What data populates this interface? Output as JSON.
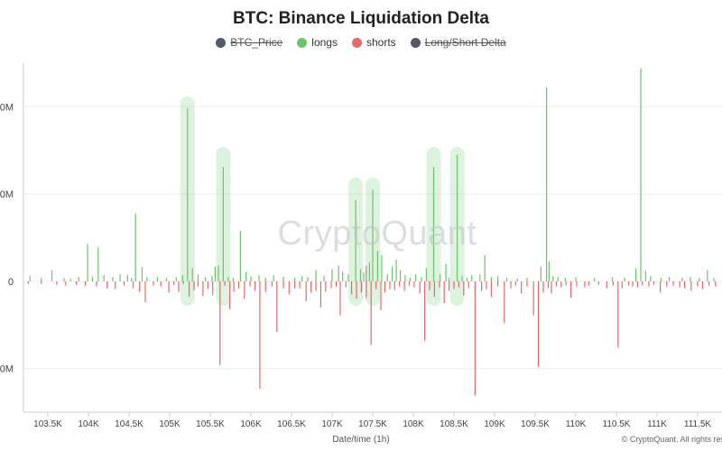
{
  "chart_data": {
    "type": "bar",
    "title": "BTC: Binance Liquidation Delta",
    "xlabel": "Date/time (1h)",
    "x_tick_labels": [
      "103.5K",
      "104K",
      "104.5K",
      "105K",
      "105.5K",
      "106K",
      "106.5K",
      "107K",
      "107.5K",
      "108K",
      "108.5K",
      "109K",
      "109.5K",
      "110K",
      "110.5K",
      "111K",
      "111.5K"
    ],
    "y_tick_labels": [
      "0M",
      "0M",
      "0",
      "0M"
    ],
    "y_tick_values": [
      20,
      10,
      0,
      -10
    ],
    "ylim": [
      -15,
      25
    ],
    "legend": [
      {
        "name": "BTC_Price",
        "color": "#555a66",
        "hidden": true
      },
      {
        "name": "longs",
        "color": "#6cc36c",
        "hidden": false
      },
      {
        "name": "shorts",
        "color": "#e06b6b",
        "hidden": false
      },
      {
        "name": "Long/Short Delta",
        "color": "#555a66",
        "hidden": true
      }
    ],
    "x_range": [
      103200,
      111800
    ],
    "grid": "horizontal",
    "series": [
      {
        "name": "longs",
        "color": "#6cc36c",
        "points": [
          [
            103280,
            0.6
          ],
          [
            103420,
            0.4
          ],
          [
            103550,
            1.3
          ],
          [
            103700,
            0.4
          ],
          [
            103780,
            0.3
          ],
          [
            103880,
            0.5
          ],
          [
            103990,
            4.3
          ],
          [
            104050,
            0.5
          ],
          [
            104120,
            3.9
          ],
          [
            104190,
            0.7
          ],
          [
            104300,
            0.5
          ],
          [
            104390,
            0.8
          ],
          [
            104480,
            0.7
          ],
          [
            104530,
            0.4
          ],
          [
            104580,
            7.8
          ],
          [
            104660,
            1.6
          ],
          [
            104720,
            0.5
          ],
          [
            104850,
            0.5
          ],
          [
            104960,
            0.4
          ],
          [
            105080,
            0.5
          ],
          [
            105160,
            0.7
          ],
          [
            105220,
            19.8
          ],
          [
            105280,
            1.5
          ],
          [
            105350,
            0.8
          ],
          [
            105440,
            0.5
          ],
          [
            105520,
            0.6
          ],
          [
            105560,
            1.7
          ],
          [
            105600,
            1.8
          ],
          [
            105660,
            13.1
          ],
          [
            105720,
            0.5
          ],
          [
            105780,
            0.4
          ],
          [
            105870,
            5.8
          ],
          [
            105940,
            1.1
          ],
          [
            106000,
            0.6
          ],
          [
            106100,
            0.7
          ],
          [
            106180,
            0.4
          ],
          [
            106280,
            0.7
          ],
          [
            106400,
            0.5
          ],
          [
            106540,
            0.4
          ],
          [
            106630,
            0.6
          ],
          [
            106700,
            0.5
          ],
          [
            106800,
            1.3
          ],
          [
            106900,
            0.6
          ],
          [
            107000,
            1.4
          ],
          [
            107080,
            1.8
          ],
          [
            107130,
            1.1
          ],
          [
            107200,
            0.8
          ],
          [
            107290,
            9.3
          ],
          [
            107350,
            1.4
          ],
          [
            107390,
            1.0
          ],
          [
            107420,
            1.8
          ],
          [
            107460,
            2.2
          ],
          [
            107500,
            10.5
          ],
          [
            107560,
            3.5
          ],
          [
            107610,
            3.0
          ],
          [
            107680,
            0.8
          ],
          [
            107740,
            1.7
          ],
          [
            107790,
            2.5
          ],
          [
            107840,
            1.3
          ],
          [
            107900,
            0.7
          ],
          [
            107960,
            0.4
          ],
          [
            108030,
            0.8
          ],
          [
            108100,
            0.5
          ],
          [
            108160,
            1.5
          ],
          [
            108250,
            13.1
          ],
          [
            108330,
            0.8
          ],
          [
            108400,
            2.0
          ],
          [
            108440,
            0.4
          ],
          [
            108540,
            14.5
          ],
          [
            108600,
            0.6
          ],
          [
            108660,
            0.4
          ],
          [
            108720,
            0.7
          ],
          [
            108820,
            0.8
          ],
          [
            108880,
            3.0
          ],
          [
            108960,
            0.5
          ],
          [
            109040,
            0.6
          ],
          [
            109150,
            0.4
          ],
          [
            109280,
            0.3
          ],
          [
            109400,
            0.4
          ],
          [
            109570,
            1.7
          ],
          [
            109640,
            22.2
          ],
          [
            109670,
            2.3
          ],
          [
            109720,
            0.6
          ],
          [
            109780,
            0.5
          ],
          [
            109870,
            0.4
          ],
          [
            110000,
            0.5
          ],
          [
            110230,
            0.4
          ],
          [
            110450,
            0.5
          ],
          [
            110600,
            0.4
          ],
          [
            110740,
            1.5
          ],
          [
            110800,
            24.4
          ],
          [
            110860,
            1.2
          ],
          [
            110920,
            0.6
          ],
          [
            111050,
            0.4
          ],
          [
            111150,
            0.5
          ],
          [
            111310,
            0.4
          ],
          [
            111410,
            0.5
          ],
          [
            111520,
            0.4
          ],
          [
            111620,
            1.3
          ],
          [
            111700,
            0.4
          ]
        ]
      },
      {
        "name": "shorts",
        "color": "#e06b6b",
        "points": [
          [
            103260,
            -0.3
          ],
          [
            103420,
            -0.3
          ],
          [
            103610,
            -0.4
          ],
          [
            103720,
            -0.5
          ],
          [
            103850,
            -0.4
          ],
          [
            103960,
            -0.5
          ],
          [
            104100,
            -0.6
          ],
          [
            104230,
            -0.8
          ],
          [
            104330,
            -0.9
          ],
          [
            104440,
            -0.5
          ],
          [
            104550,
            -0.8
          ],
          [
            104630,
            -1.2
          ],
          [
            104700,
            -2.4
          ],
          [
            104800,
            -0.5
          ],
          [
            104890,
            -0.6
          ],
          [
            104990,
            -1.3
          ],
          [
            105050,
            -0.4
          ],
          [
            105110,
            -1.2
          ],
          [
            105170,
            -0.3
          ],
          [
            105240,
            -1.8
          ],
          [
            105300,
            -1.0
          ],
          [
            105350,
            -0.6
          ],
          [
            105410,
            -1.7
          ],
          [
            105470,
            -0.9
          ],
          [
            105530,
            -1.6
          ],
          [
            105620,
            -9.6
          ],
          [
            105680,
            -0.5
          ],
          [
            105740,
            -3.2
          ],
          [
            105790,
            -1.2
          ],
          [
            105850,
            -0.8
          ],
          [
            105920,
            -2.0
          ],
          [
            105990,
            -0.6
          ],
          [
            106050,
            -1.1
          ],
          [
            106110,
            -12.3
          ],
          [
            106180,
            -1.2
          ],
          [
            106260,
            -0.6
          ],
          [
            106320,
            -5.8
          ],
          [
            106400,
            -0.8
          ],
          [
            106470,
            -1.5
          ],
          [
            106540,
            -0.8
          ],
          [
            106600,
            -0.8
          ],
          [
            106680,
            -2.3
          ],
          [
            106740,
            -1.3
          ],
          [
            106800,
            -1.1
          ],
          [
            106860,
            -3.0
          ],
          [
            106920,
            -1.2
          ],
          [
            106990,
            -0.8
          ],
          [
            107050,
            -0.6
          ],
          [
            107100,
            -3.9
          ],
          [
            107170,
            -0.7
          ],
          [
            107240,
            -1.5
          ],
          [
            107300,
            -2.0
          ],
          [
            107360,
            -1.3
          ],
          [
            107420,
            -1.9
          ],
          [
            107480,
            -7.3
          ],
          [
            107540,
            -0.9
          ],
          [
            107600,
            -3.3
          ],
          [
            107650,
            -1.3
          ],
          [
            107710,
            -0.9
          ],
          [
            107770,
            -1.0
          ],
          [
            107830,
            -0.6
          ],
          [
            107890,
            -1.1
          ],
          [
            107950,
            -0.5
          ],
          [
            108010,
            -0.7
          ],
          [
            108080,
            -1.4
          ],
          [
            108140,
            -6.8
          ],
          [
            108200,
            -1.0
          ],
          [
            108260,
            -1.8
          ],
          [
            108320,
            -0.7
          ],
          [
            108380,
            -2.5
          ],
          [
            108440,
            -1.1
          ],
          [
            108500,
            -0.9
          ],
          [
            108560,
            -0.7
          ],
          [
            108620,
            -1.6
          ],
          [
            108680,
            -0.8
          ],
          [
            108760,
            -13.1
          ],
          [
            108840,
            -1.1
          ],
          [
            108900,
            -0.9
          ],
          [
            108960,
            -1.8
          ],
          [
            109040,
            -0.6
          ],
          [
            109120,
            -4.8
          ],
          [
            109200,
            -0.8
          ],
          [
            109260,
            -0.5
          ],
          [
            109330,
            -1.4
          ],
          [
            109400,
            -0.6
          ],
          [
            109480,
            -3.9
          ],
          [
            109540,
            -9.8
          ],
          [
            109600,
            -1.3
          ],
          [
            109660,
            -0.8
          ],
          [
            109700,
            -1.4
          ],
          [
            109760,
            -0.6
          ],
          [
            109820,
            -0.7
          ],
          [
            109880,
            -0.5
          ],
          [
            109940,
            -1.9
          ],
          [
            110010,
            -0.6
          ],
          [
            110110,
            -0.7
          ],
          [
            110160,
            -0.5
          ],
          [
            110280,
            -0.4
          ],
          [
            110380,
            -0.8
          ],
          [
            110460,
            -0.5
          ],
          [
            110520,
            -7.6
          ],
          [
            110570,
            -0.8
          ],
          [
            110650,
            -0.5
          ],
          [
            110700,
            -0.6
          ],
          [
            110760,
            -0.7
          ],
          [
            110820,
            -0.5
          ],
          [
            110900,
            -0.6
          ],
          [
            110960,
            -0.4
          ],
          [
            111040,
            -1.3
          ],
          [
            111120,
            -0.6
          ],
          [
            111200,
            -0.5
          ],
          [
            111280,
            -0.7
          ],
          [
            111340,
            -0.8
          ],
          [
            111420,
            -1.1
          ],
          [
            111500,
            -0.6
          ],
          [
            111560,
            -0.9
          ],
          [
            111640,
            -0.5
          ],
          [
            111720,
            -0.6
          ]
        ]
      }
    ],
    "highlights": [
      {
        "x": 105220,
        "y": [
          -2.8,
          21.2
        ]
      },
      {
        "x": 105660,
        "y": [
          -2.8,
          15.4
        ]
      },
      {
        "x": 107290,
        "y": [
          -2.8,
          11.9
        ]
      },
      {
        "x": 107500,
        "y": [
          -2.8,
          11.9
        ]
      },
      {
        "x": 108250,
        "y": [
          -2.8,
          15.4
        ]
      },
      {
        "x": 108540,
        "y": [
          -2.8,
          15.4
        ]
      }
    ]
  },
  "watermark": "CryptoQuant",
  "copyright": "© CryptoQuant. All rights reserved."
}
